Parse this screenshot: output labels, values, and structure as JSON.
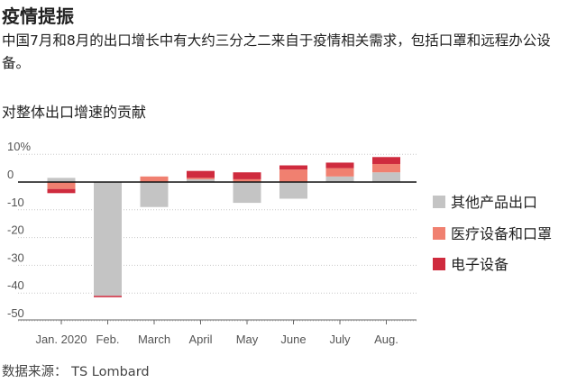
{
  "title": "疫情提振",
  "subtitle": "中国7月和8月的出口增长中有大约三分之二来自于疫情相关需求，包括口罩和远程办公设备。",
  "section_title": "对整体出口增速的贡献",
  "source": "数据来源： TS Lombard",
  "colors": {
    "other": "#c4c4c4",
    "medical": "#f08070",
    "electronics": "#cf2b3e"
  },
  "chart_data": {
    "type": "bar",
    "stacked": true,
    "categories": [
      "Jan. 2020",
      "Feb.",
      "March",
      "April",
      "May",
      "June",
      "July",
      "Aug."
    ],
    "y_tick_labels": [
      "10%",
      "0",
      "-10",
      "-20",
      "-30",
      "-40",
      "-50"
    ],
    "ylim": [
      -50,
      10
    ],
    "grid": true,
    "legend_position": "right",
    "series": [
      {
        "name": "其他产品出口",
        "key": "other",
        "values": [
          1.5,
          -41,
          -9,
          1,
          -7.5,
          -6,
          2,
          3.5
        ]
      },
      {
        "name": "医疗设备和口罩",
        "key": "medical",
        "values": [
          -2.5,
          0,
          2,
          0.5,
          1,
          4.5,
          3,
          3
        ]
      },
      {
        "name": "电子设备",
        "key": "electronics",
        "values": [
          -1.5,
          -0.5,
          0,
          2.5,
          2.5,
          1.5,
          2,
          2.5
        ]
      }
    ]
  }
}
